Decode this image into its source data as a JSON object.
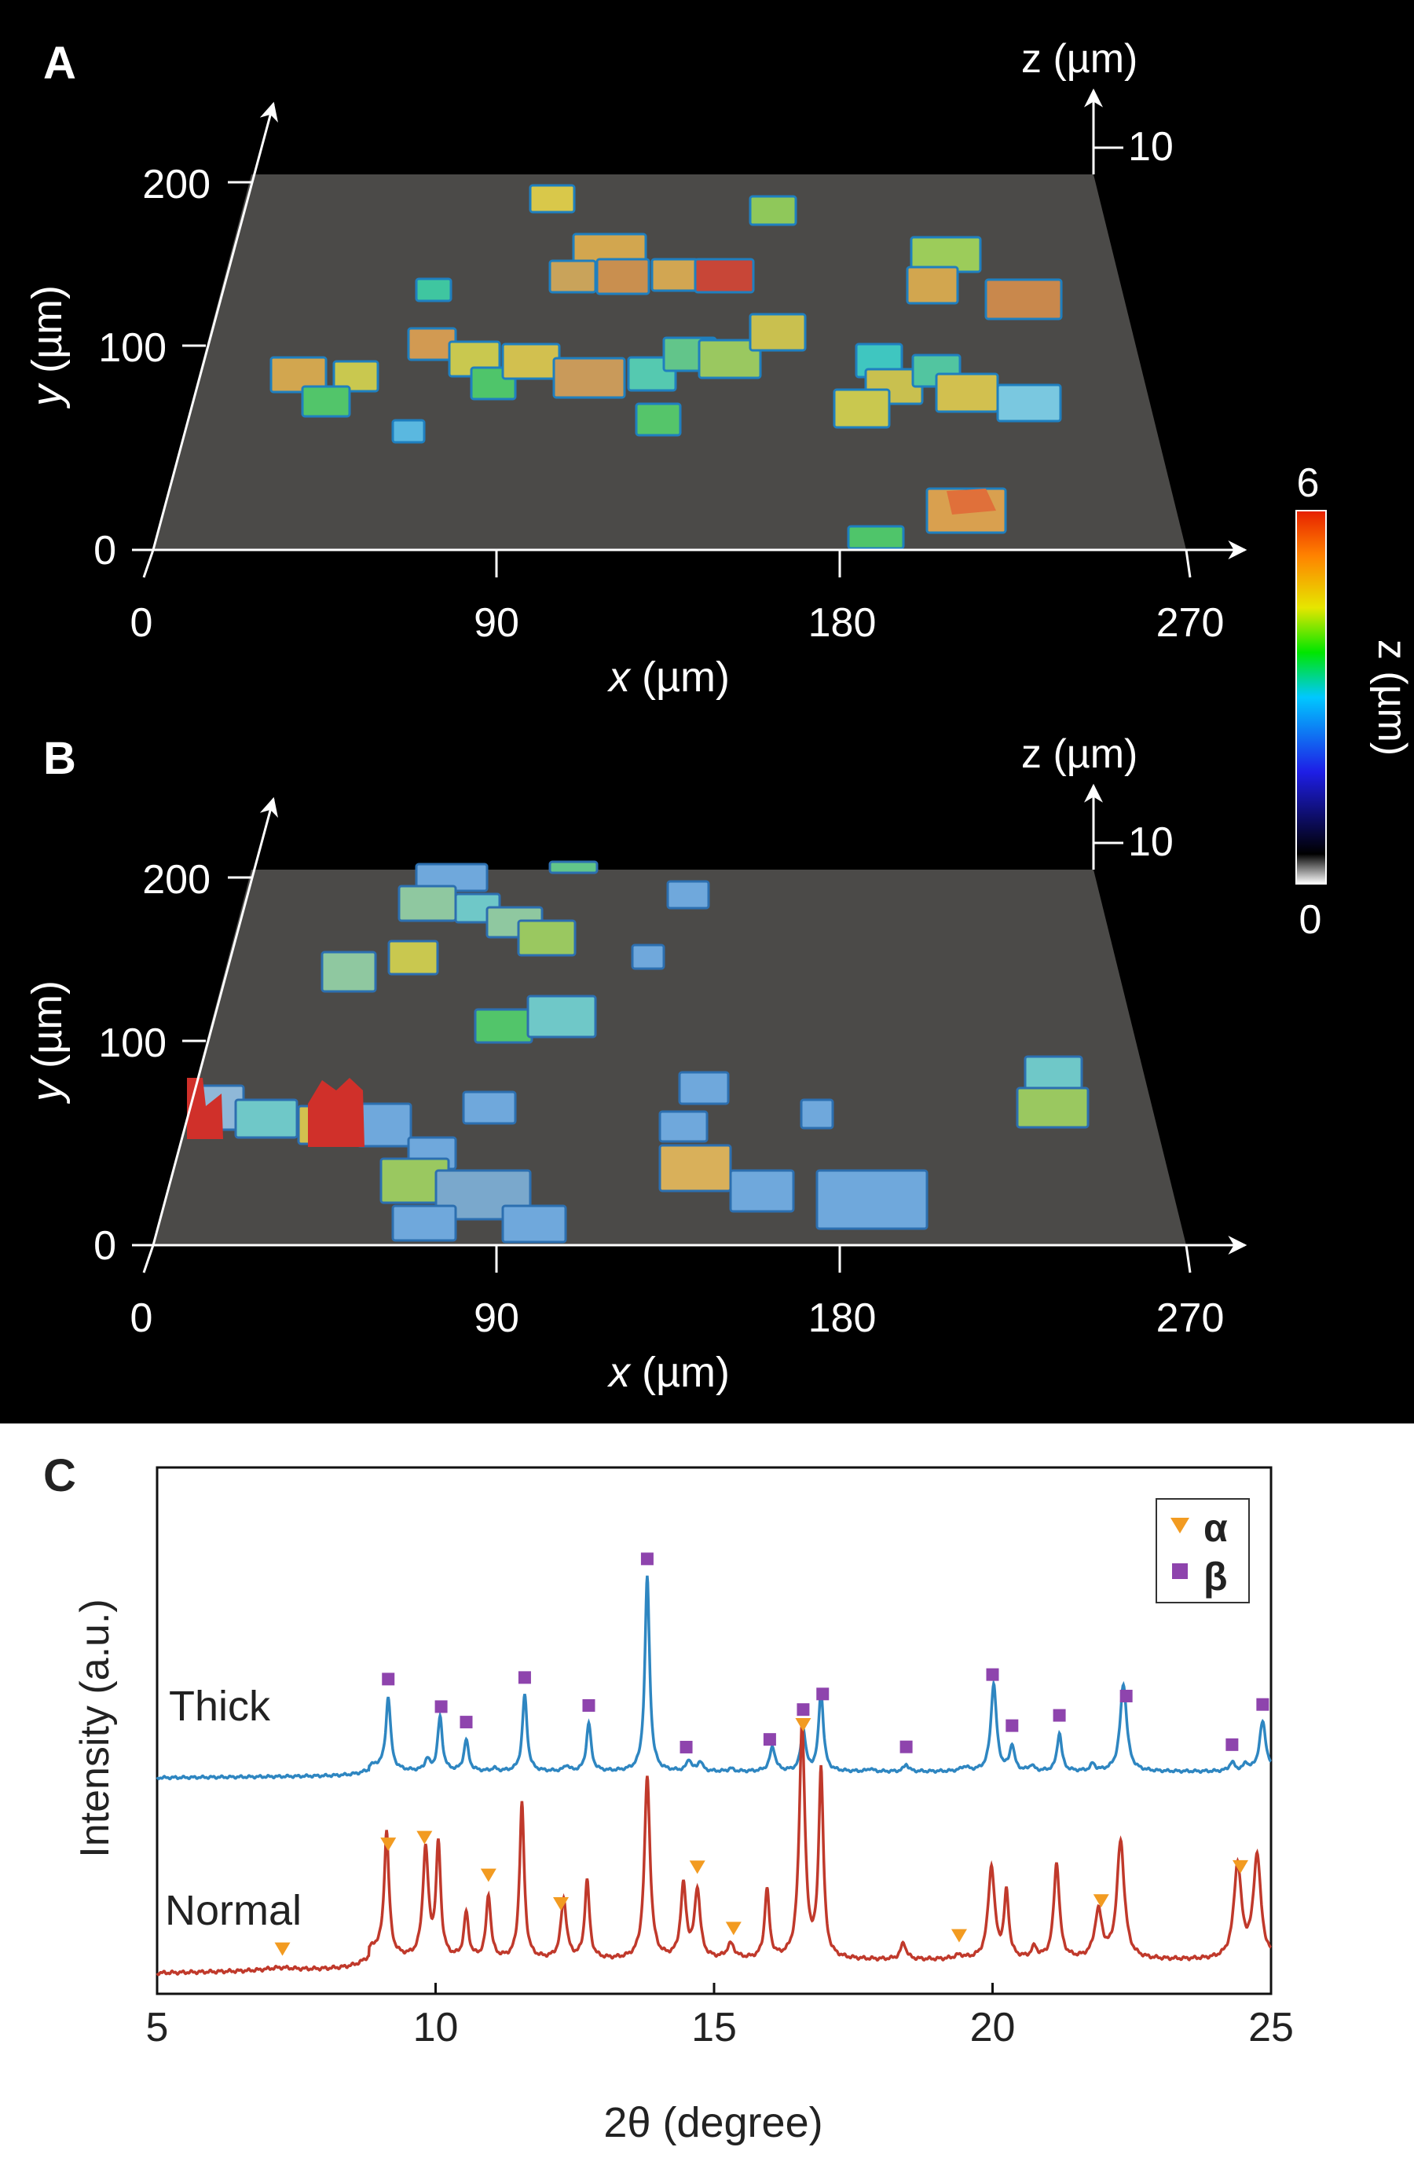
{
  "panels": {
    "a": {
      "letter": "A",
      "x_label_var": "x",
      "x_label_unit": " (µm)",
      "y_label_var": "y",
      "y_label_unit": " (µm)",
      "z_label": "z (µm)",
      "z_tick": "10",
      "x_ticks": [
        "0",
        "90",
        "180",
        "270"
      ],
      "y_ticks": [
        "0",
        "100",
        "200"
      ]
    },
    "b": {
      "letter": "B",
      "x_label_var": "x",
      "x_label_unit": " (µm)",
      "y_label_var": "y",
      "y_label_unit": " (µm)",
      "z_label": "z (µm)",
      "z_tick": "10",
      "x_ticks": [
        "0",
        "90",
        "180",
        "270"
      ],
      "y_ticks": [
        "0",
        "100",
        "200"
      ]
    },
    "c": {
      "letter": "C"
    }
  },
  "colorbar": {
    "label": "z (µm)",
    "max_label": "6",
    "min_label": "0",
    "colors": [
      "#ffffff",
      "#000000",
      "#1e1ee6",
      "#00c8ff",
      "#00e600",
      "#e6e600",
      "#ff8200",
      "#e62000"
    ]
  },
  "chart_data": {
    "type": "line",
    "xlabel": "2θ (degree)",
    "ylabel": "Intensity (a.u.)",
    "xlim": [
      5,
      25
    ],
    "xticks": [
      "5",
      "10",
      "15",
      "20",
      "25"
    ],
    "legend": [
      {
        "marker": "triangle-down",
        "label": "α",
        "color": "#f29b21"
      },
      {
        "marker": "square",
        "label": "β",
        "color": "#8e44ad"
      }
    ],
    "series": [
      {
        "name": "Thick",
        "color": "#2e86c1",
        "baseline": 0.06,
        "peaks": [
          [
            8.9,
            0.04,
            0.25
          ],
          [
            9.15,
            0.51,
            0.05
          ],
          [
            9.85,
            0.08,
            0.05
          ],
          [
            10.08,
            0.38,
            0.05
          ],
          [
            10.55,
            0.22,
            0.05
          ],
          [
            11.05,
            0.02,
            0.05
          ],
          [
            11.6,
            0.54,
            0.05
          ],
          [
            12.35,
            0.04,
            0.05
          ],
          [
            12.75,
            0.34,
            0.05
          ],
          [
            13.8,
            1.38,
            0.05
          ],
          [
            14.55,
            0.08,
            0.05
          ],
          [
            14.75,
            0.07,
            0.05
          ],
          [
            15.3,
            0.02,
            0.05
          ],
          [
            16.05,
            0.17,
            0.06
          ],
          [
            16.6,
            0.3,
            0.05
          ],
          [
            16.92,
            0.57,
            0.05
          ],
          [
            17.8,
            0.02,
            0.05
          ],
          [
            18.45,
            0.05,
            0.05
          ],
          [
            19.5,
            0.03,
            0.08
          ],
          [
            20.02,
            0.62,
            0.06
          ],
          [
            20.35,
            0.18,
            0.05
          ],
          [
            20.7,
            0.04,
            0.05
          ],
          [
            21.2,
            0.27,
            0.05
          ],
          [
            21.8,
            0.05,
            0.05
          ],
          [
            22.35,
            0.62,
            0.07
          ],
          [
            24.3,
            0.06,
            0.06
          ],
          [
            24.55,
            0.05,
            0.05
          ],
          [
            24.85,
            0.35,
            0.07
          ]
        ],
        "markers": [
          {
            "type": "beta",
            "x": [
              9.15,
              10.1,
              10.55,
              11.6,
              12.75,
              13.8,
              14.5,
              16.0,
              16.6,
              16.95,
              18.45,
              20.0,
              20.35,
              21.2,
              22.4,
              24.3,
              24.85
            ]
          }
        ]
      },
      {
        "name": "Normal",
        "color": "#c0392b",
        "baseline": 0.1,
        "peaks": [
          [
            7.2,
            0.015,
            0.3
          ],
          [
            8.9,
            0.06,
            0.25
          ],
          [
            9.12,
            0.68,
            0.05
          ],
          [
            9.82,
            0.6,
            0.06
          ],
          [
            10.05,
            0.62,
            0.05
          ],
          [
            10.55,
            0.25,
            0.05
          ],
          [
            10.95,
            0.35,
            0.05
          ],
          [
            11.55,
            0.86,
            0.05
          ],
          [
            12.3,
            0.33,
            0.06
          ],
          [
            12.72,
            0.43,
            0.05
          ],
          [
            13.8,
            1.01,
            0.06
          ],
          [
            14.45,
            0.4,
            0.06
          ],
          [
            14.7,
            0.38,
            0.06
          ],
          [
            15.3,
            0.08,
            0.08
          ],
          [
            15.95,
            0.38,
            0.05
          ],
          [
            16.58,
            1.3,
            0.06
          ],
          [
            16.92,
            1.04,
            0.05
          ],
          [
            18.4,
            0.09,
            0.06
          ],
          [
            19.4,
            0.02,
            0.1
          ],
          [
            19.98,
            0.51,
            0.07
          ],
          [
            20.25,
            0.36,
            0.05
          ],
          [
            20.75,
            0.06,
            0.06
          ],
          [
            21.15,
            0.53,
            0.06
          ],
          [
            21.9,
            0.26,
            0.08
          ],
          [
            22.3,
            0.65,
            0.08
          ],
          [
            24.4,
            0.52,
            0.08
          ],
          [
            24.75,
            0.57,
            0.08
          ]
        ],
        "markers": [
          {
            "type": "alpha",
            "x": [
              7.25,
              9.15,
              9.8,
              10.95,
              12.25,
              14.7,
              15.35,
              16.6,
              19.4,
              21.95,
              24.45
            ]
          }
        ]
      }
    ]
  }
}
